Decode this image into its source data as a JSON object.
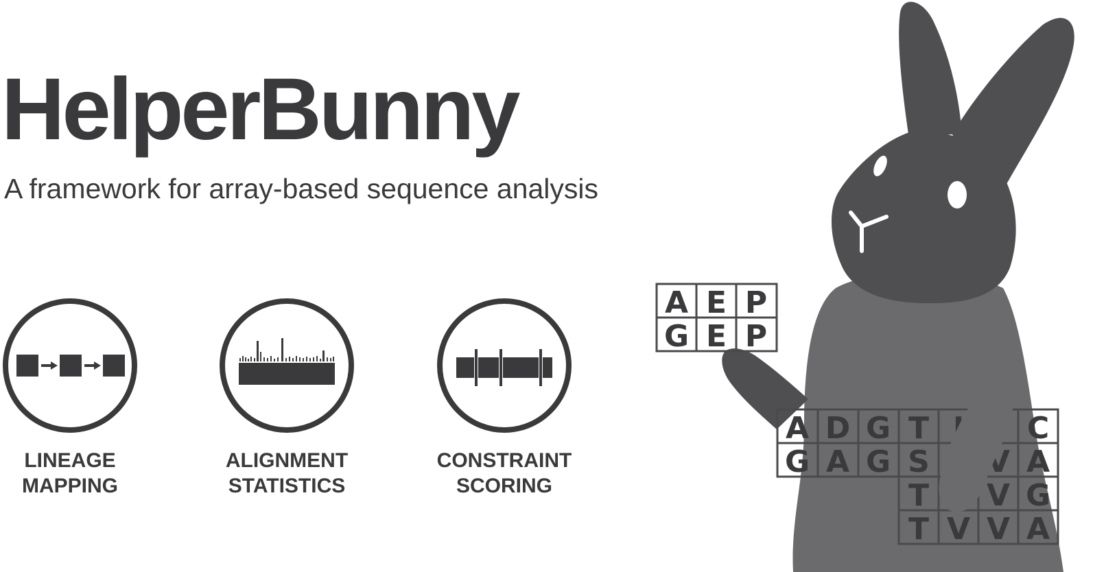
{
  "header": {
    "title": "HelperBunny",
    "subtitle": "A framework for array-based sequence analysis"
  },
  "features": [
    {
      "icon": "lineage-mapping-icon",
      "label_lines": [
        "LINEAGE",
        "MAPPING"
      ]
    },
    {
      "icon": "alignment-statistics-icon",
      "label_lines": [
        "ALIGNMENT",
        "STATISTICS"
      ]
    },
    {
      "icon": "constraint-scoring-icon",
      "label_lines": [
        "CONSTRAINT",
        "SCORING"
      ]
    }
  ],
  "illustration": {
    "small_grid": {
      "rows": [
        [
          "A",
          "E",
          "P"
        ],
        [
          "G",
          "E",
          "P"
        ]
      ]
    },
    "large_grid": {
      "rows": [
        [
          "A",
          "D",
          "G",
          "T",
          "I",
          "",
          "C"
        ],
        [
          "G",
          "A",
          "G",
          "S",
          "",
          "V",
          "A"
        ],
        [
          "",
          "",
          "",
          "T",
          "",
          "V",
          "G"
        ],
        [
          "",
          "",
          "",
          "T",
          "V",
          "V",
          "A"
        ]
      ]
    }
  },
  "colors": {
    "text": "#3a3a3c",
    "bunny_head": "#4f4f51",
    "bunny_body": "#6b6b6d",
    "grid_line": "#4a4a4c",
    "background": "#ffffff"
  }
}
